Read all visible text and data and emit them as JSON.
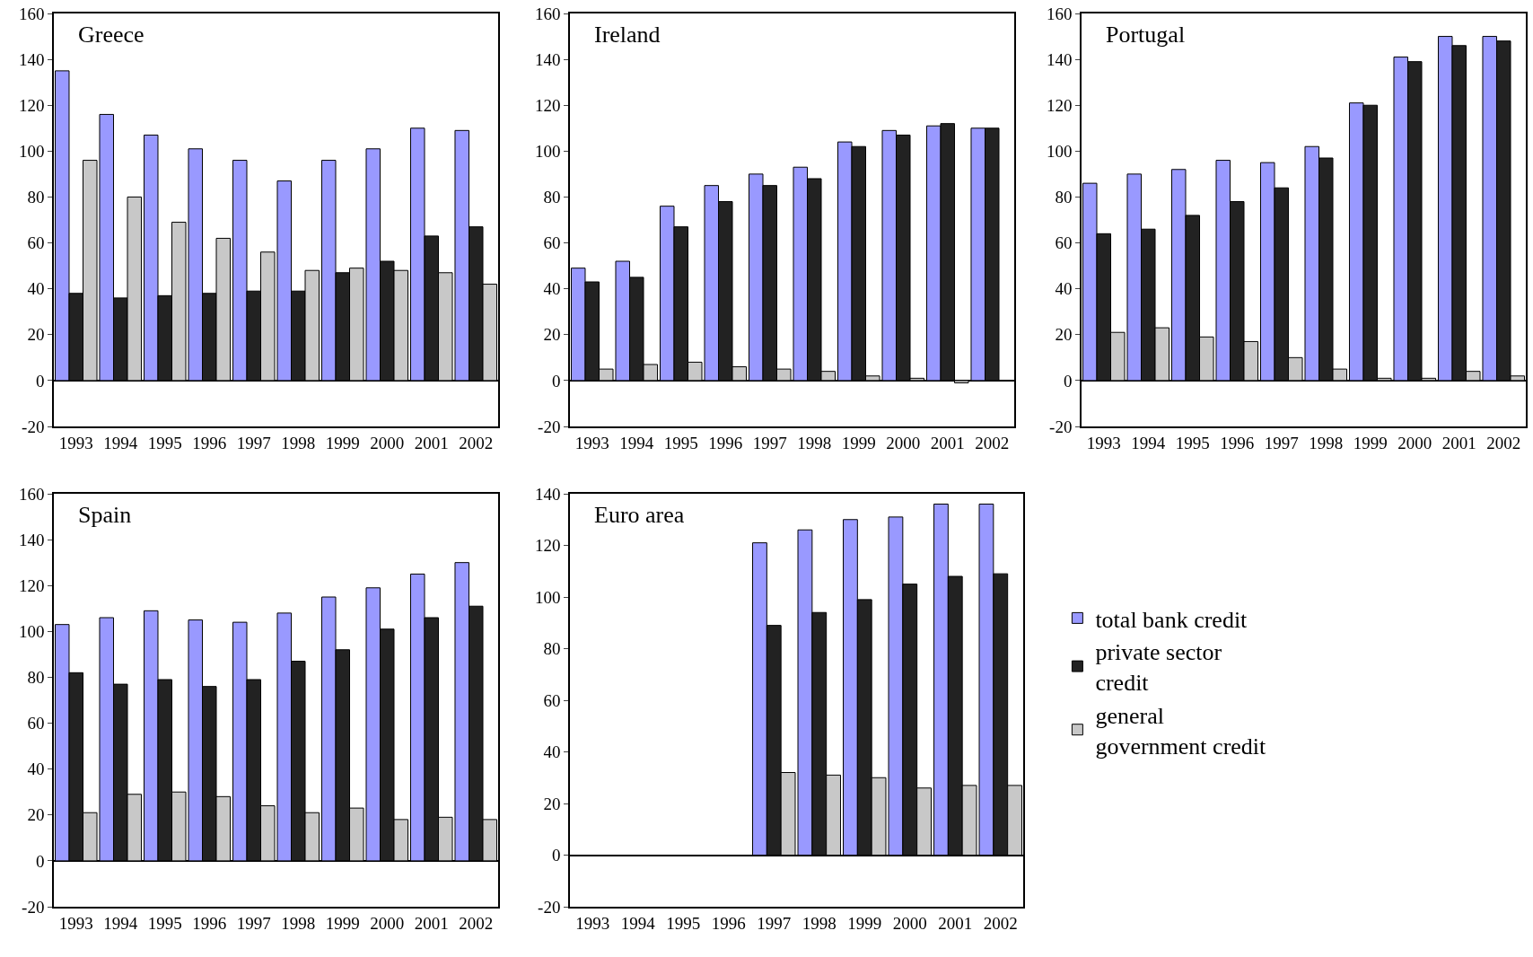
{
  "chart_data": [
    {
      "type": "bar",
      "title": "Greece",
      "categories": [
        "1993",
        "1994",
        "1995",
        "1996",
        "1997",
        "1998",
        "1999",
        "2000",
        "2001",
        "2002"
      ],
      "ylim": [
        -20,
        160
      ],
      "yticks": [
        -20,
        0,
        20,
        40,
        60,
        80,
        100,
        120,
        140,
        160
      ],
      "series": [
        {
          "color": "#9999ff",
          "values": [
            135,
            116,
            107,
            101,
            96,
            87,
            96,
            101,
            110,
            109
          ]
        },
        {
          "color": "#222222",
          "values": [
            38,
            36,
            37,
            38,
            39,
            39,
            47,
            52,
            63,
            67
          ]
        },
        {
          "color": "#c8c8c8",
          "values": [
            96,
            80,
            69,
            62,
            56,
            48,
            49,
            48,
            47,
            42
          ]
        }
      ]
    },
    {
      "type": "bar",
      "title": "Ireland",
      "categories": [
        "1993",
        "1994",
        "1995",
        "1996",
        "1997",
        "1998",
        "1999",
        "2000",
        "2001",
        "2002"
      ],
      "ylim": [
        -20,
        160
      ],
      "yticks": [
        -20,
        0,
        20,
        40,
        60,
        80,
        100,
        120,
        140,
        160
      ],
      "series": [
        {
          "color": "#9999ff",
          "values": [
            49,
            52,
            76,
            85,
            90,
            93,
            104,
            109,
            111,
            110
          ]
        },
        {
          "color": "#222222",
          "values": [
            43,
            45,
            67,
            78,
            85,
            88,
            102,
            107,
            112,
            110
          ]
        },
        {
          "color": "#c8c8c8",
          "values": [
            5,
            7,
            8,
            6,
            5,
            4,
            2,
            1,
            -1,
            null
          ]
        }
      ]
    },
    {
      "type": "bar",
      "title": "Portugal",
      "categories": [
        "1993",
        "1994",
        "1995",
        "1996",
        "1997",
        "1998",
        "1999",
        "2000",
        "2001",
        "2002"
      ],
      "ylim": [
        -20,
        160
      ],
      "yticks": [
        -20,
        0,
        20,
        40,
        60,
        80,
        100,
        120,
        140,
        160
      ],
      "series": [
        {
          "color": "#9999ff",
          "values": [
            86,
            90,
            92,
            96,
            95,
            102,
            121,
            141,
            150,
            150
          ]
        },
        {
          "color": "#222222",
          "values": [
            64,
            66,
            72,
            78,
            84,
            97,
            120,
            139,
            146,
            148
          ]
        },
        {
          "color": "#c8c8c8",
          "values": [
            21,
            23,
            19,
            17,
            10,
            5,
            1,
            1,
            4,
            2
          ]
        }
      ]
    },
    {
      "type": "bar",
      "title": "Spain",
      "categories": [
        "1993",
        "1994",
        "1995",
        "1996",
        "1997",
        "1998",
        "1999",
        "2000",
        "2001",
        "2002"
      ],
      "ylim": [
        -20,
        160
      ],
      "yticks": [
        -20,
        0,
        20,
        40,
        60,
        80,
        100,
        120,
        140,
        160
      ],
      "series": [
        {
          "color": "#9999ff",
          "values": [
            103,
            106,
            109,
            105,
            104,
            108,
            115,
            119,
            125,
            130
          ]
        },
        {
          "color": "#222222",
          "values": [
            82,
            77,
            79,
            76,
            79,
            87,
            92,
            101,
            106,
            111
          ]
        },
        {
          "color": "#c8c8c8",
          "values": [
            21,
            29,
            30,
            28,
            24,
            21,
            23,
            18,
            19,
            18
          ]
        }
      ]
    },
    {
      "type": "bar",
      "title": "Euro area",
      "categories": [
        "1993",
        "1994",
        "1995",
        "1996",
        "1997",
        "1998",
        "1999",
        "2000",
        "2001",
        "2002"
      ],
      "ylim": [
        -20,
        140
      ],
      "yticks": [
        -20,
        0,
        20,
        40,
        60,
        80,
        100,
        120,
        140
      ],
      "legend": "right",
      "series": [
        {
          "name": "total bank credit",
          "color": "#9999ff",
          "values": [
            null,
            null,
            null,
            null,
            121,
            126,
            130,
            131,
            136,
            136
          ]
        },
        {
          "name": "private sector credit",
          "color": "#222222",
          "values": [
            null,
            null,
            null,
            null,
            89,
            94,
            99,
            105,
            108,
            109
          ]
        },
        {
          "name": "general government credit",
          "color": "#c8c8c8",
          "values": [
            null,
            null,
            null,
            null,
            32,
            31,
            30,
            26,
            27,
            27
          ]
        }
      ]
    }
  ]
}
